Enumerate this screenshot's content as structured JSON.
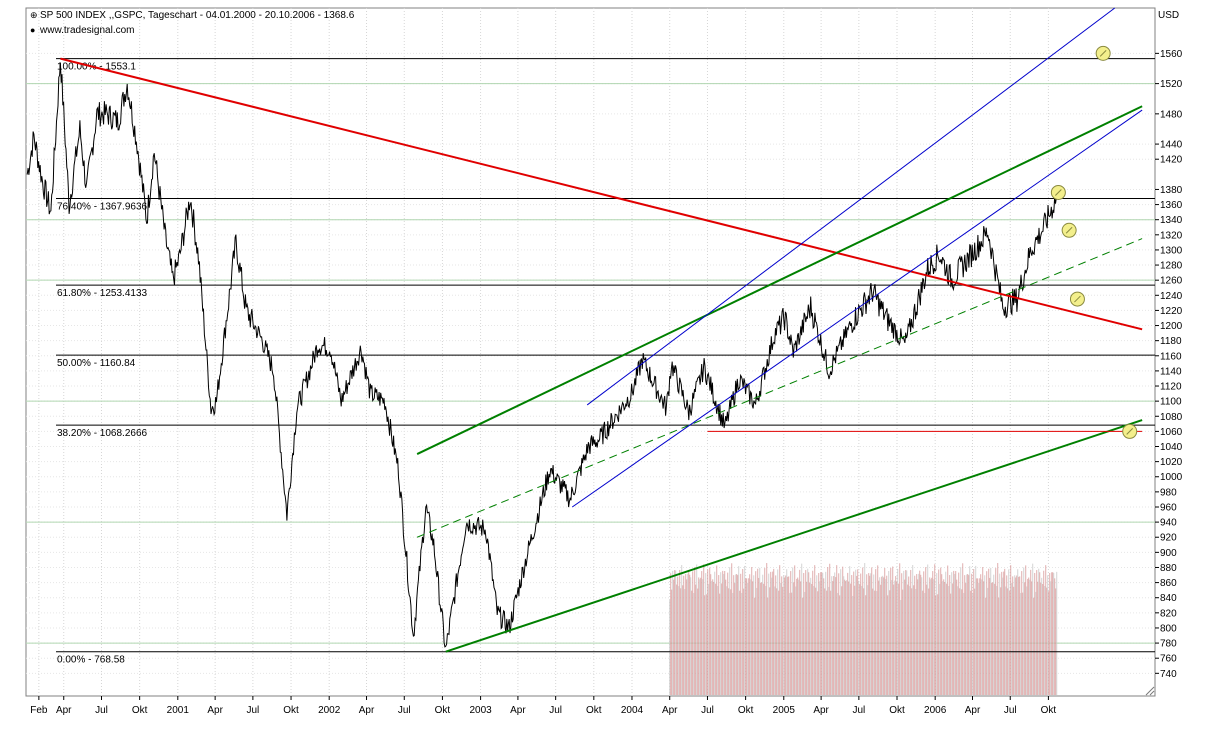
{
  "header": {
    "title": "SP 500 INDEX ,,GSPC, Tageschart - 04.01.2000 - 20.10.2006 - 1368.6",
    "source": "www.tradesignal.com",
    "title_marker": "⊕",
    "source_marker": "●"
  },
  "chart_data": {
    "type": "line",
    "instrument": "SP 500 INDEX ,,GSPC",
    "period": "Tageschart",
    "start_date": "04.01.2000",
    "end_date": "20.10.2006",
    "last_value": 1368.6,
    "unit": "USD",
    "y_range": [
      710,
      1620
    ],
    "y_ticks": [
      740,
      760,
      780,
      800,
      820,
      840,
      860,
      880,
      900,
      920,
      940,
      960,
      980,
      1000,
      1020,
      1040,
      1060,
      1080,
      1100,
      1120,
      1140,
      1160,
      1180,
      1200,
      1220,
      1240,
      1260,
      1280,
      1300,
      1320,
      1340,
      1360,
      1380,
      1420,
      1440,
      1480,
      1520,
      1560
    ],
    "x_ticks": [
      {
        "label": "Feb",
        "date": "2000-02-01"
      },
      {
        "label": "Apr",
        "date": "2000-04-01"
      },
      {
        "label": "Jul",
        "date": "2000-07-01"
      },
      {
        "label": "Okt",
        "date": "2000-10-01"
      },
      {
        "label": "2001",
        "date": "2001-01-01"
      },
      {
        "label": "Apr",
        "date": "2001-04-01"
      },
      {
        "label": "Jul",
        "date": "2001-07-01"
      },
      {
        "label": "Okt",
        "date": "2001-10-01"
      },
      {
        "label": "2002",
        "date": "2002-01-01"
      },
      {
        "label": "Apr",
        "date": "2002-04-01"
      },
      {
        "label": "Jul",
        "date": "2002-07-01"
      },
      {
        "label": "Okt",
        "date": "2002-10-01"
      },
      {
        "label": "2003",
        "date": "2003-01-01"
      },
      {
        "label": "Apr",
        "date": "2003-04-01"
      },
      {
        "label": "Jul",
        "date": "2003-07-01"
      },
      {
        "label": "Okt",
        "date": "2003-10-01"
      },
      {
        "label": "2004",
        "date": "2004-01-01"
      },
      {
        "label": "Apr",
        "date": "2004-04-01"
      },
      {
        "label": "Jul",
        "date": "2004-07-01"
      },
      {
        "label": "Okt",
        "date": "2004-10-01"
      },
      {
        "label": "2005",
        "date": "2005-01-01"
      },
      {
        "label": "Apr",
        "date": "2005-04-01"
      },
      {
        "label": "Jul",
        "date": "2005-07-01"
      },
      {
        "label": "Okt",
        "date": "2005-10-01"
      },
      {
        "label": "2006",
        "date": "2006-01-01"
      },
      {
        "label": "Apr",
        "date": "2006-04-01"
      },
      {
        "label": "Jul",
        "date": "2006-07-01"
      },
      {
        "label": "Okt",
        "date": "2006-10-01"
      }
    ],
    "price_series": [
      [
        "2000-01-04",
        1400
      ],
      [
        "2000-01-20",
        1450
      ],
      [
        "2000-02-10",
        1390
      ],
      [
        "2000-03-01",
        1350
      ],
      [
        "2000-03-24",
        1553
      ],
      [
        "2000-04-14",
        1360
      ],
      [
        "2000-05-10",
        1460
      ],
      [
        "2000-05-26",
        1380
      ],
      [
        "2000-06-20",
        1480
      ],
      [
        "2000-07-14",
        1480
      ],
      [
        "2000-08-10",
        1470
      ],
      [
        "2000-09-01",
        1520
      ],
      [
        "2000-09-25",
        1440
      ],
      [
        "2000-10-18",
        1340
      ],
      [
        "2000-11-05",
        1430
      ],
      [
        "2000-12-01",
        1320
      ],
      [
        "2000-12-20",
        1260
      ],
      [
        "2001-01-05",
        1290
      ],
      [
        "2001-01-31",
        1370
      ],
      [
        "2001-02-20",
        1290
      ],
      [
        "2001-03-22",
        1090
      ],
      [
        "2001-04-04",
        1100
      ],
      [
        "2001-05-21",
        1310
      ],
      [
        "2001-06-15",
        1220
      ],
      [
        "2001-07-24",
        1180
      ],
      [
        "2001-08-20",
        1140
      ],
      [
        "2001-09-21",
        950
      ],
      [
        "2001-10-15",
        1090
      ],
      [
        "2001-11-15",
        1140
      ],
      [
        "2001-12-05",
        1175
      ],
      [
        "2002-01-04",
        1170
      ],
      [
        "2002-01-30",
        1100
      ],
      [
        "2002-03-19",
        1170
      ],
      [
        "2002-04-10",
        1110
      ],
      [
        "2002-05-15",
        1100
      ],
      [
        "2002-06-17",
        1010
      ],
      [
        "2002-07-23",
        790
      ],
      [
        "2002-08-22",
        960
      ],
      [
        "2002-09-10",
        910
      ],
      [
        "2002-10-09",
        770
      ],
      [
        "2002-11-27",
        940
      ],
      [
        "2003-01-14",
        930
      ],
      [
        "2003-02-10",
        820
      ],
      [
        "2003-03-11",
        800
      ],
      [
        "2003-04-15",
        880
      ],
      [
        "2003-06-17",
        1010
      ],
      [
        "2003-08-05",
        970
      ],
      [
        "2003-09-18",
        1040
      ],
      [
        "2003-10-15",
        1050
      ],
      [
        "2003-12-31",
        1110
      ],
      [
        "2004-01-26",
        1155
      ],
      [
        "2004-03-24",
        1090
      ],
      [
        "2004-04-05",
        1150
      ],
      [
        "2004-05-17",
        1085
      ],
      [
        "2004-06-23",
        1145
      ],
      [
        "2004-08-12",
        1065
      ],
      [
        "2004-09-15",
        1130
      ],
      [
        "2004-10-25",
        1095
      ],
      [
        "2004-12-10",
        1190
      ],
      [
        "2005-01-03",
        1210
      ],
      [
        "2005-01-24",
        1165
      ],
      [
        "2005-03-07",
        1225
      ],
      [
        "2005-04-20",
        1140
      ],
      [
        "2005-06-15",
        1205
      ],
      [
        "2005-08-03",
        1245
      ],
      [
        "2005-09-05",
        1210
      ],
      [
        "2005-10-20",
        1175
      ],
      [
        "2005-12-14",
        1275
      ],
      [
        "2006-01-11",
        1295
      ],
      [
        "2006-02-10",
        1260
      ],
      [
        "2006-04-20",
        1310
      ],
      [
        "2006-05-08",
        1325
      ],
      [
        "2006-06-13",
        1225
      ],
      [
        "2006-07-17",
        1235
      ],
      [
        "2006-08-20",
        1300
      ],
      [
        "2006-09-20",
        1330
      ],
      [
        "2006-10-20",
        1368.6
      ]
    ],
    "volume_series": {
      "start_date": "2004-04-01",
      "end_date": "2006-10-20",
      "color": "#d99a9a"
    },
    "fibonacci_levels": [
      {
        "label": "100.00% - 1553.1",
        "value": 1553.1
      },
      {
        "label": "76.40% - 1367.9636",
        "value": 1367.96
      },
      {
        "label": "61.80% - 1253.4133",
        "value": 1253.41
      },
      {
        "label": "50.00% - 1160.84",
        "value": 1160.84
      },
      {
        "label": "38.20% - 1068.2666",
        "value": 1068.27
      },
      {
        "label": "0.00% - 768.58",
        "value": 768.58
      }
    ],
    "trendlines": [
      {
        "name": "red-downtrend",
        "color": "#e00000",
        "style": "solid",
        "width": 2,
        "points": [
          [
            "2000-03-24",
            1553
          ],
          [
            "2007-05-15",
            1195
          ]
        ]
      },
      {
        "name": "green-upper-channel",
        "color": "#008000",
        "style": "solid",
        "width": 2,
        "points": [
          [
            "2002-08-01",
            1030
          ],
          [
            "2007-05-15",
            1490
          ]
        ]
      },
      {
        "name": "green-lower-channel",
        "color": "#008000",
        "style": "solid",
        "width": 2,
        "points": [
          [
            "2002-10-09",
            768.6
          ],
          [
            "2007-05-15",
            1075
          ]
        ]
      },
      {
        "name": "green-dashed-channel",
        "color": "#008000",
        "style": "dashed",
        "width": 1,
        "points": [
          [
            "2002-08-01",
            920
          ],
          [
            "2007-05-15",
            1315
          ]
        ]
      },
      {
        "name": "blue-upper-channel",
        "color": "#0000cc",
        "style": "solid",
        "width": 1,
        "points": [
          [
            "2003-09-15",
            1095
          ],
          [
            "2007-03-10",
            1620
          ]
        ]
      },
      {
        "name": "blue-lower-channel",
        "color": "#0000cc",
        "style": "solid",
        "width": 1,
        "points": [
          [
            "2003-08-10",
            960
          ],
          [
            "2007-05-15",
            1485
          ]
        ]
      },
      {
        "name": "red-support",
        "color": "#e00000",
        "style": "solid",
        "width": 1,
        "points": [
          [
            "2004-07-01",
            1060
          ],
          [
            "2007-05-15",
            1060
          ]
        ]
      }
    ],
    "markers": [
      {
        "date": "2006-10-25",
        "value": 1376
      },
      {
        "date": "2006-11-20",
        "value": 1326
      },
      {
        "date": "2007-02-10",
        "value": 1560
      },
      {
        "date": "2006-12-10",
        "value": 1235
      },
      {
        "date": "2007-04-15",
        "value": 1060
      }
    ],
    "colors": {
      "price": "#000000",
      "fib": "#000000",
      "grid_h": "#b0d6b0",
      "grid_v": "#d6d6d6",
      "marker_fill": "#f3ef8c",
      "marker_stroke": "#8a8a40",
      "volume": "#d99a9a"
    },
    "grid": true
  }
}
